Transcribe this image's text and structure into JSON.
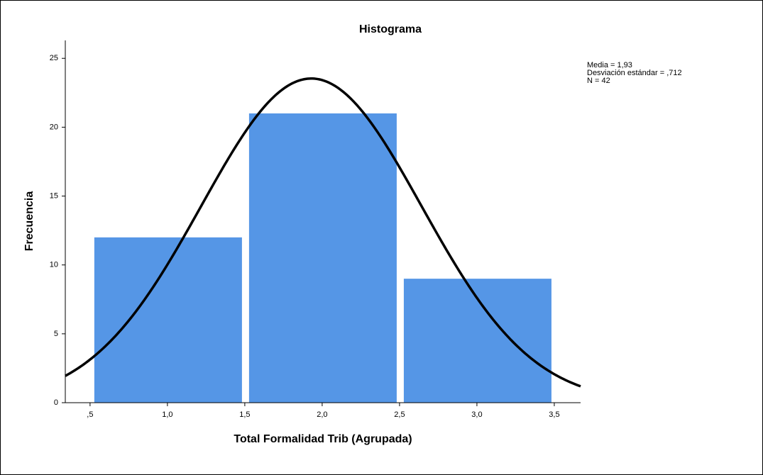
{
  "chart_data": {
    "type": "histogram",
    "title": "Histograma",
    "x_label": "Total Formalidad Trib (Agrupada)",
    "y_label": "Frecuencia",
    "bins": [
      0.5,
      1.5,
      2.5,
      3.5
    ],
    "values": [
      12,
      21,
      9
    ],
    "color": "#5596e6",
    "xlim": [
      0.34,
      3.67
    ],
    "ylim": [
      0,
      26.3
    ],
    "xticks": [
      {
        "value": 0.5,
        "label": ",5"
      },
      {
        "value": 1.0,
        "label": "1,0"
      },
      {
        "value": 1.5,
        "label": "1,5"
      },
      {
        "value": 2.0,
        "label": "2,0"
      },
      {
        "value": 2.5,
        "label": "2,5"
      },
      {
        "value": 3.0,
        "label": "3,0"
      },
      {
        "value": 3.5,
        "label": "3,5"
      }
    ],
    "yticks": [
      0,
      5,
      10,
      15,
      20,
      25
    ],
    "stats": [
      {
        "value": 1.93,
        "label": "Media = 1,93"
      },
      {
        "value": 0.712,
        "label": "Desviación estándar = ,712"
      },
      {
        "value": 42,
        "label": "N = 42"
      }
    ]
  }
}
